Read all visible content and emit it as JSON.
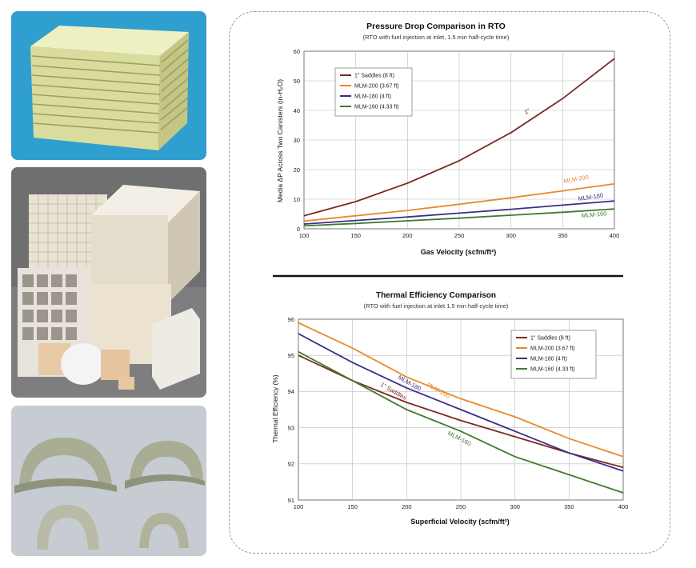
{
  "chart_data": [
    {
      "type": "line",
      "title": "Pressure Drop Comparison in RTO",
      "subtitle": "(RTO with fuel injection at inlet, 1.5 min half-cycle time)",
      "xlabel": "Gas Velocity (scfm/ft²)",
      "ylabel": "Media ΔP Across Two Canisters (in-H₂O)",
      "xlim": [
        100,
        400
      ],
      "ylim": [
        0,
        60
      ],
      "xticks": [
        100,
        150,
        200,
        250,
        300,
        350,
        400
      ],
      "yticks": [
        0,
        10,
        20,
        30,
        40,
        50,
        60
      ],
      "grid": true,
      "legend_position": "top-left",
      "series": [
        {
          "name": "1\" Saddles (8 ft)",
          "line_label": "1\"",
          "color": "#7a2a22",
          "x": [
            100,
            150,
            200,
            250,
            300,
            350,
            400
          ],
          "y": [
            4.4,
            9.2,
            15.4,
            23.0,
            32.5,
            44.0,
            57.5
          ]
        },
        {
          "name": "MLM-200 (3.67 ft)",
          "line_label": "MLM-200",
          "color": "#e8892b",
          "x": [
            100,
            150,
            200,
            250,
            300,
            350,
            400
          ],
          "y": [
            2.6,
            4.4,
            6.2,
            8.3,
            10.5,
            12.8,
            15.2
          ]
        },
        {
          "name": "MLM-180 (4 ft)",
          "line_label": "MLM-180",
          "color": "#3b2e86",
          "x": [
            100,
            150,
            200,
            250,
            300,
            350,
            400
          ],
          "y": [
            1.6,
            2.8,
            4.0,
            5.3,
            6.6,
            8.0,
            9.4
          ]
        },
        {
          "name": "MLM-160 (4.33 ft)",
          "line_label": "MLM-160",
          "color": "#3f7a2e",
          "x": [
            100,
            150,
            200,
            250,
            300,
            350,
            400
          ],
          "y": [
            1.0,
            1.8,
            2.7,
            3.6,
            4.6,
            5.6,
            6.7
          ]
        }
      ]
    },
    {
      "type": "line",
      "title": "Thermal Efficiency Comparison",
      "subtitle": "(RTO with fuel injection at inlet 1.5 min half-cycle time)",
      "xlabel": "Superficial Velocity (scfm/ft²)",
      "ylabel": "Thermal Efficiency (%)",
      "xlim": [
        100,
        400
      ],
      "ylim": [
        91,
        96
      ],
      "xticks": [
        100,
        150,
        200,
        250,
        300,
        350,
        400
      ],
      "yticks": [
        91,
        92,
        93,
        94,
        95,
        96
      ],
      "grid": true,
      "legend_position": "top-right",
      "series": [
        {
          "name": "1\" Saddles (8 ft)",
          "line_label": "1\" Saddles",
          "color": "#7a2a22",
          "x": [
            100,
            150,
            200,
            250,
            300,
            350,
            400
          ],
          "y": [
            95.0,
            94.3,
            93.7,
            93.2,
            92.75,
            92.3,
            91.9
          ]
        },
        {
          "name": "MLM-200 (3.67 ft)",
          "line_label": "MLM-200",
          "color": "#e8892b",
          "x": [
            100,
            150,
            200,
            250,
            300,
            350,
            400
          ],
          "y": [
            95.9,
            95.2,
            94.4,
            93.8,
            93.3,
            92.7,
            92.2
          ]
        },
        {
          "name": "MLM-180 (4 ft)",
          "line_label": "MLM-180",
          "color": "#3b2e86",
          "x": [
            100,
            150,
            200,
            250,
            300,
            350,
            400
          ],
          "y": [
            95.6,
            94.8,
            94.1,
            93.5,
            92.9,
            92.3,
            91.8
          ]
        },
        {
          "name": "MLM-160 (4.33 ft)",
          "line_label": "MLM-160",
          "color": "#3f7a2e",
          "x": [
            100,
            150,
            200,
            250,
            300,
            350,
            400
          ],
          "y": [
            95.1,
            94.3,
            93.5,
            92.9,
            92.2,
            91.7,
            91.2
          ]
        }
      ]
    }
  ]
}
